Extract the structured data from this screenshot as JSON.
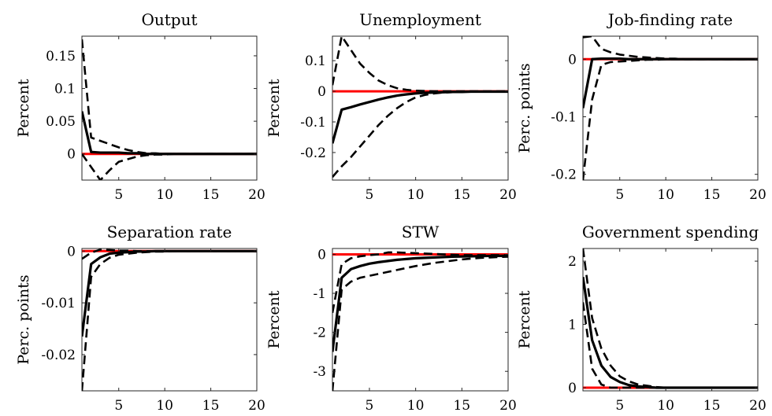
{
  "colors": {
    "background": "#ffffff",
    "median": "#000000",
    "bands": "#000000",
    "zero_line": "#ff0000"
  },
  "chart_data": [
    {
      "type": "line",
      "title": "Output",
      "ylabel": "Percent",
      "xlim": [
        1,
        20
      ],
      "ylim": [
        -0.04,
        0.18
      ],
      "xticks": [
        5,
        10,
        15,
        20
      ],
      "xtick_labels": [
        "5",
        "10",
        "15",
        "20"
      ],
      "yticks": [
        0,
        0.05,
        0.1,
        0.15
      ],
      "ytick_labels": [
        "0",
        "0.05",
        "0.1",
        "0.15"
      ],
      "x": [
        1,
        2,
        3,
        4,
        5,
        6,
        7,
        8,
        9,
        10,
        11,
        12,
        13,
        14,
        15,
        16,
        17,
        18,
        19,
        20
      ],
      "series": [
        {
          "role": "median",
          "values": [
            0.065,
            0.003,
            0.002,
            0.002,
            0.002,
            0.001,
            0.001,
            0,
            0,
            0,
            0,
            0,
            0,
            0,
            0,
            0,
            0,
            0,
            0,
            0
          ]
        },
        {
          "role": "upper_band",
          "values": [
            0.175,
            0.025,
            0.02,
            0.015,
            0.01,
            0.006,
            0.003,
            0.001,
            0.001,
            0,
            0,
            0,
            0,
            0,
            0,
            0,
            0,
            0,
            0,
            0
          ]
        },
        {
          "role": "lower_band",
          "values": [
            0,
            -0.02,
            -0.04,
            -0.025,
            -0.012,
            -0.008,
            -0.004,
            -0.002,
            -0.001,
            -0.001,
            0,
            0,
            0,
            0,
            0,
            0,
            0,
            0,
            0,
            0
          ]
        },
        {
          "role": "zero_line",
          "values": [
            0,
            0,
            0,
            0,
            0,
            0,
            0,
            0,
            0,
            0,
            0,
            0,
            0,
            0,
            0,
            0,
            0,
            0,
            0,
            0
          ]
        }
      ]
    },
    {
      "type": "line",
      "title": "Unemployment",
      "ylabel": "Percent",
      "xlim": [
        1,
        20
      ],
      "ylim": [
        -0.29,
        0.18
      ],
      "xticks": [
        5,
        10,
        15,
        20
      ],
      "xtick_labels": [
        "5",
        "10",
        "15",
        "20"
      ],
      "yticks": [
        -0.2,
        -0.1,
        0,
        0.1
      ],
      "ytick_labels": [
        "-0.2",
        "-0.1",
        "0",
        "0.1"
      ],
      "x": [
        1,
        2,
        3,
        4,
        5,
        6,
        7,
        8,
        9,
        10,
        11,
        12,
        13,
        14,
        15,
        16,
        17,
        18,
        19,
        20
      ],
      "series": [
        {
          "role": "median",
          "values": [
            -0.17,
            -0.06,
            -0.052,
            -0.043,
            -0.035,
            -0.027,
            -0.02,
            -0.014,
            -0.01,
            -0.007,
            -0.005,
            -0.004,
            -0.003,
            -0.002,
            -0.002,
            -0.001,
            -0.001,
            -0.001,
            -0.001,
            -0.001
          ]
        },
        {
          "role": "upper_band",
          "values": [
            0.02,
            0.18,
            0.135,
            0.09,
            0.06,
            0.035,
            0.02,
            0.01,
            0.005,
            0.002,
            0.001,
            0,
            0,
            0,
            0,
            0,
            0,
            0,
            0,
            0
          ]
        },
        {
          "role": "lower_band",
          "values": [
            -0.28,
            -0.245,
            -0.215,
            -0.18,
            -0.145,
            -0.11,
            -0.08,
            -0.055,
            -0.035,
            -0.02,
            -0.012,
            -0.007,
            -0.004,
            -0.003,
            -0.002,
            -0.001,
            -0.001,
            -0.001,
            -0.001,
            -0.001
          ]
        },
        {
          "role": "zero_line",
          "values": [
            0,
            0,
            0,
            0,
            0,
            0,
            0,
            0,
            0,
            0,
            0,
            0,
            0,
            0,
            0,
            0,
            0,
            0,
            0,
            0
          ]
        }
      ]
    },
    {
      "type": "line",
      "title": "Job-finding rate",
      "ylabel": "Perc. points",
      "xlim": [
        1,
        20
      ],
      "ylim": [
        -0.21,
        0.04
      ],
      "xticks": [
        5,
        10,
        15,
        20
      ],
      "xtick_labels": [
        "5",
        "10",
        "15",
        "20"
      ],
      "yticks": [
        -0.2,
        -0.1,
        0
      ],
      "ytick_labels": [
        "-0.2",
        "-0.1",
        "0"
      ],
      "x": [
        1,
        2,
        3,
        4,
        5,
        6,
        7,
        8,
        9,
        10,
        11,
        12,
        13,
        14,
        15,
        16,
        17,
        18,
        19,
        20
      ],
      "series": [
        {
          "role": "median",
          "values": [
            -0.085,
            0,
            0.001,
            0.001,
            0.001,
            0,
            0,
            0,
            0,
            0,
            0,
            0,
            0,
            0,
            0,
            0,
            0,
            0,
            0,
            0
          ]
        },
        {
          "role": "upper_band",
          "values": [
            0.038,
            0.04,
            0.018,
            0.012,
            0.008,
            0.006,
            0.004,
            0.003,
            0.002,
            0.001,
            0.001,
            0,
            0,
            0,
            0,
            0,
            0,
            0,
            0,
            0
          ]
        },
        {
          "role": "lower_band",
          "values": [
            -0.21,
            -0.07,
            -0.01,
            -0.005,
            -0.004,
            -0.003,
            -0.002,
            -0.001,
            -0.001,
            0,
            0,
            0,
            0,
            0,
            0,
            0,
            0,
            0,
            0,
            0
          ]
        },
        {
          "role": "zero_line",
          "values": [
            0,
            0,
            0,
            0,
            0,
            0,
            0,
            0,
            0,
            0,
            0,
            0,
            0,
            0,
            0,
            0,
            0,
            0,
            0,
            0
          ]
        }
      ]
    },
    {
      "type": "line",
      "title": "Separation rate",
      "ylabel": "Perc. points",
      "xlim": [
        1,
        20
      ],
      "ylim": [
        -0.027,
        0.0005
      ],
      "xticks": [
        5,
        10,
        15,
        20
      ],
      "xtick_labels": [
        "5",
        "10",
        "15",
        "20"
      ],
      "yticks": [
        -0.02,
        -0.01,
        0
      ],
      "ytick_labels": [
        "-0.02",
        "-0.01",
        "0"
      ],
      "x": [
        1,
        2,
        3,
        4,
        5,
        6,
        7,
        8,
        9,
        10,
        11,
        12,
        13,
        14,
        15,
        16,
        17,
        18,
        19,
        20
      ],
      "series": [
        {
          "role": "median",
          "values": [
            -0.0165,
            -0.0025,
            -0.0012,
            -0.0005,
            -0.0003,
            -0.0002,
            -0.0001,
            -0.0001,
            0,
            0,
            0,
            0,
            0,
            0,
            0,
            0,
            0,
            0,
            0,
            0
          ]
        },
        {
          "role": "upper_band",
          "values": [
            -0.0015,
            -0.0003,
            0.0003,
            0.0002,
            0.0001,
            0.0001,
            0,
            0,
            0,
            0,
            0,
            0,
            0,
            0,
            0,
            0,
            0,
            0,
            0,
            0
          ]
        },
        {
          "role": "lower_band",
          "values": [
            -0.027,
            -0.005,
            -0.0025,
            -0.0013,
            -0.0007,
            -0.0005,
            -0.0003,
            -0.0002,
            -0.0001,
            -0.0001,
            0,
            0,
            0,
            0,
            0,
            0,
            0,
            0,
            0,
            0
          ]
        },
        {
          "role": "zero_line",
          "values": [
            0,
            0,
            0,
            0,
            0,
            0,
            0,
            0,
            0,
            0,
            0,
            0,
            0,
            0,
            0,
            0,
            0,
            0,
            0,
            0
          ]
        }
      ]
    },
    {
      "type": "line",
      "title": "STW",
      "ylabel": "Percent",
      "xlim": [
        1,
        20
      ],
      "ylim": [
        -3.5,
        0.15
      ],
      "xticks": [
        5,
        10,
        15,
        20
      ],
      "xtick_labels": [
        "5",
        "10",
        "15",
        "20"
      ],
      "yticks": [
        -3,
        -2,
        -1,
        0
      ],
      "ytick_labels": [
        "-3",
        "-2",
        "-1",
        "0"
      ],
      "x": [
        1,
        2,
        3,
        4,
        5,
        6,
        7,
        8,
        9,
        10,
        11,
        12,
        13,
        14,
        15,
        16,
        17,
        18,
        19,
        20
      ],
      "series": [
        {
          "role": "median",
          "values": [
            -2.5,
            -0.6,
            -0.38,
            -0.3,
            -0.24,
            -0.2,
            -0.17,
            -0.14,
            -0.12,
            -0.1,
            -0.09,
            -0.08,
            -0.07,
            -0.06,
            -0.055,
            -0.05,
            -0.045,
            -0.04,
            -0.04,
            -0.035
          ]
        },
        {
          "role": "upper_band",
          "values": [
            -1.5,
            -0.25,
            -0.1,
            -0.05,
            -0.02,
            0,
            0.05,
            0.05,
            0.04,
            0.03,
            0.02,
            0.01,
            0,
            -0.01,
            -0.02,
            -0.02,
            -0.02,
            -0.02,
            -0.02,
            -0.02
          ]
        },
        {
          "role": "lower_band",
          "values": [
            -3.5,
            -0.9,
            -0.7,
            -0.6,
            -0.55,
            -0.5,
            -0.45,
            -0.4,
            -0.35,
            -0.3,
            -0.26,
            -0.22,
            -0.19,
            -0.16,
            -0.13,
            -0.11,
            -0.09,
            -0.08,
            -0.07,
            -0.06
          ]
        },
        {
          "role": "zero_line",
          "values": [
            0,
            0,
            0,
            0,
            0,
            0,
            0,
            0,
            0,
            0,
            0,
            0,
            0,
            0,
            0,
            0,
            0,
            0,
            0,
            0
          ]
        }
      ]
    },
    {
      "type": "line",
      "title": "Government spending",
      "ylabel": "Percent",
      "xlim": [
        1,
        20
      ],
      "ylim": [
        -0.05,
        2.2
      ],
      "xticks": [
        5,
        10,
        15,
        20
      ],
      "xtick_labels": [
        "5",
        "10",
        "15",
        "20"
      ],
      "yticks": [
        0,
        1,
        2
      ],
      "ytick_labels": [
        "0",
        "1",
        "2"
      ],
      "x": [
        1,
        2,
        3,
        4,
        5,
        6,
        7,
        8,
        9,
        10,
        11,
        12,
        13,
        14,
        15,
        16,
        17,
        18,
        19,
        20
      ],
      "series": [
        {
          "role": "median",
          "values": [
            1.75,
            0.75,
            0.35,
            0.17,
            0.09,
            0.04,
            0.02,
            0.01,
            0,
            0,
            0,
            0,
            0,
            0,
            0,
            0,
            0,
            0,
            0,
            0
          ]
        },
        {
          "role": "upper_band",
          "values": [
            2.2,
            1.1,
            0.62,
            0.35,
            0.18,
            0.1,
            0.05,
            0.03,
            0.01,
            0,
            0,
            0,
            0,
            0,
            0,
            0,
            0,
            0,
            0,
            0
          ]
        },
        {
          "role": "lower_band",
          "values": [
            1.35,
            0.3,
            0.05,
            0,
            0,
            0,
            0,
            0,
            0,
            0,
            0,
            0,
            0,
            0,
            0,
            0,
            0,
            0,
            0,
            0
          ]
        },
        {
          "role": "zero_line",
          "values": [
            0,
            0,
            0,
            0,
            0,
            0,
            0,
            0,
            0,
            0,
            0,
            0,
            0,
            0,
            0,
            0,
            0,
            0,
            0,
            0
          ]
        }
      ]
    }
  ]
}
